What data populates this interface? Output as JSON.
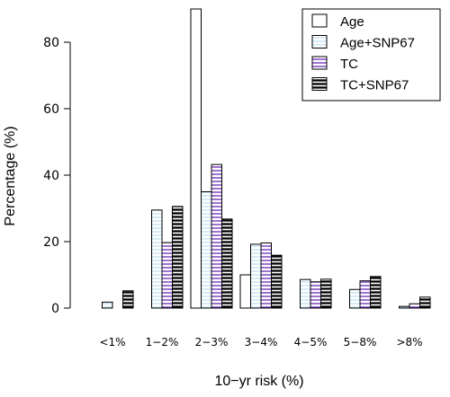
{
  "chart_data": {
    "type": "bar",
    "xlabel": "10−yr risk (%)",
    "ylabel": "Percentage (%)",
    "categories": [
      "<1%",
      "1−2%",
      "2−3%",
      "3−4%",
      "4−5%",
      "5−8%",
      ">8%"
    ],
    "ylim": [
      0,
      90
    ],
    "yticks": [
      0,
      20,
      40,
      60,
      80
    ],
    "legend_position": "top-right",
    "series": [
      {
        "name": "Age",
        "pattern": "plain",
        "fill": "#ffffff",
        "stroke": "#000000",
        "values": [
          0,
          0,
          90,
          10,
          0,
          0,
          0
        ]
      },
      {
        "name": "Age+SNP67",
        "pattern": "light-horizontal",
        "fill": "#ffffff",
        "stroke": "#000000",
        "line_color": "#b9dff1",
        "values": [
          1.8,
          29.5,
          35,
          19.2,
          8.6,
          5.6,
          0.5
        ]
      },
      {
        "name": "TC",
        "pattern": "purple-horizontal",
        "fill": "#ffffff",
        "stroke": "#000000",
        "line_color": "#6a2ab8",
        "values": [
          0,
          19.7,
          43.2,
          19.6,
          7.9,
          8.2,
          1.3
        ]
      },
      {
        "name": "TC+SNP67",
        "pattern": "black-horizontal",
        "fill": "#000000",
        "stroke": "#000000",
        "line_color": "#000000",
        "values": [
          5.2,
          30.6,
          26.8,
          15.9,
          8.7,
          9.5,
          3.3
        ]
      }
    ]
  }
}
